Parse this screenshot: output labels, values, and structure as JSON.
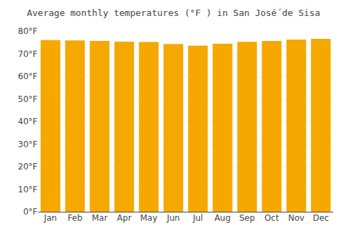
{
  "chart_data": {
    "type": "bar",
    "title": "Average monthly temperatures (°F ) in San José́ de Sisa",
    "categories": [
      "Jan",
      "Feb",
      "Mar",
      "Apr",
      "May",
      "Jun",
      "Jul",
      "Aug",
      "Sep",
      "Oct",
      "Nov",
      "Dec"
    ],
    "values": [
      76.1,
      75.9,
      75.7,
      75.4,
      75.2,
      74.3,
      73.6,
      74.5,
      75.3,
      75.7,
      76.3,
      76.6
    ],
    "color": "#F5A800",
    "ylim": [
      0,
      80
    ],
    "yticks": [
      {
        "value": 0,
        "label": "0°F"
      },
      {
        "value": 10,
        "label": "10°F"
      },
      {
        "value": 20,
        "label": "20°F"
      },
      {
        "value": 30,
        "label": "30°F"
      },
      {
        "value": 40,
        "label": "40°F"
      },
      {
        "value": 50,
        "label": "50°F"
      },
      {
        "value": 60,
        "label": "60°F"
      },
      {
        "value": 70,
        "label": "70°F"
      },
      {
        "value": 80,
        "label": "80°F"
      }
    ],
    "grid": true
  }
}
